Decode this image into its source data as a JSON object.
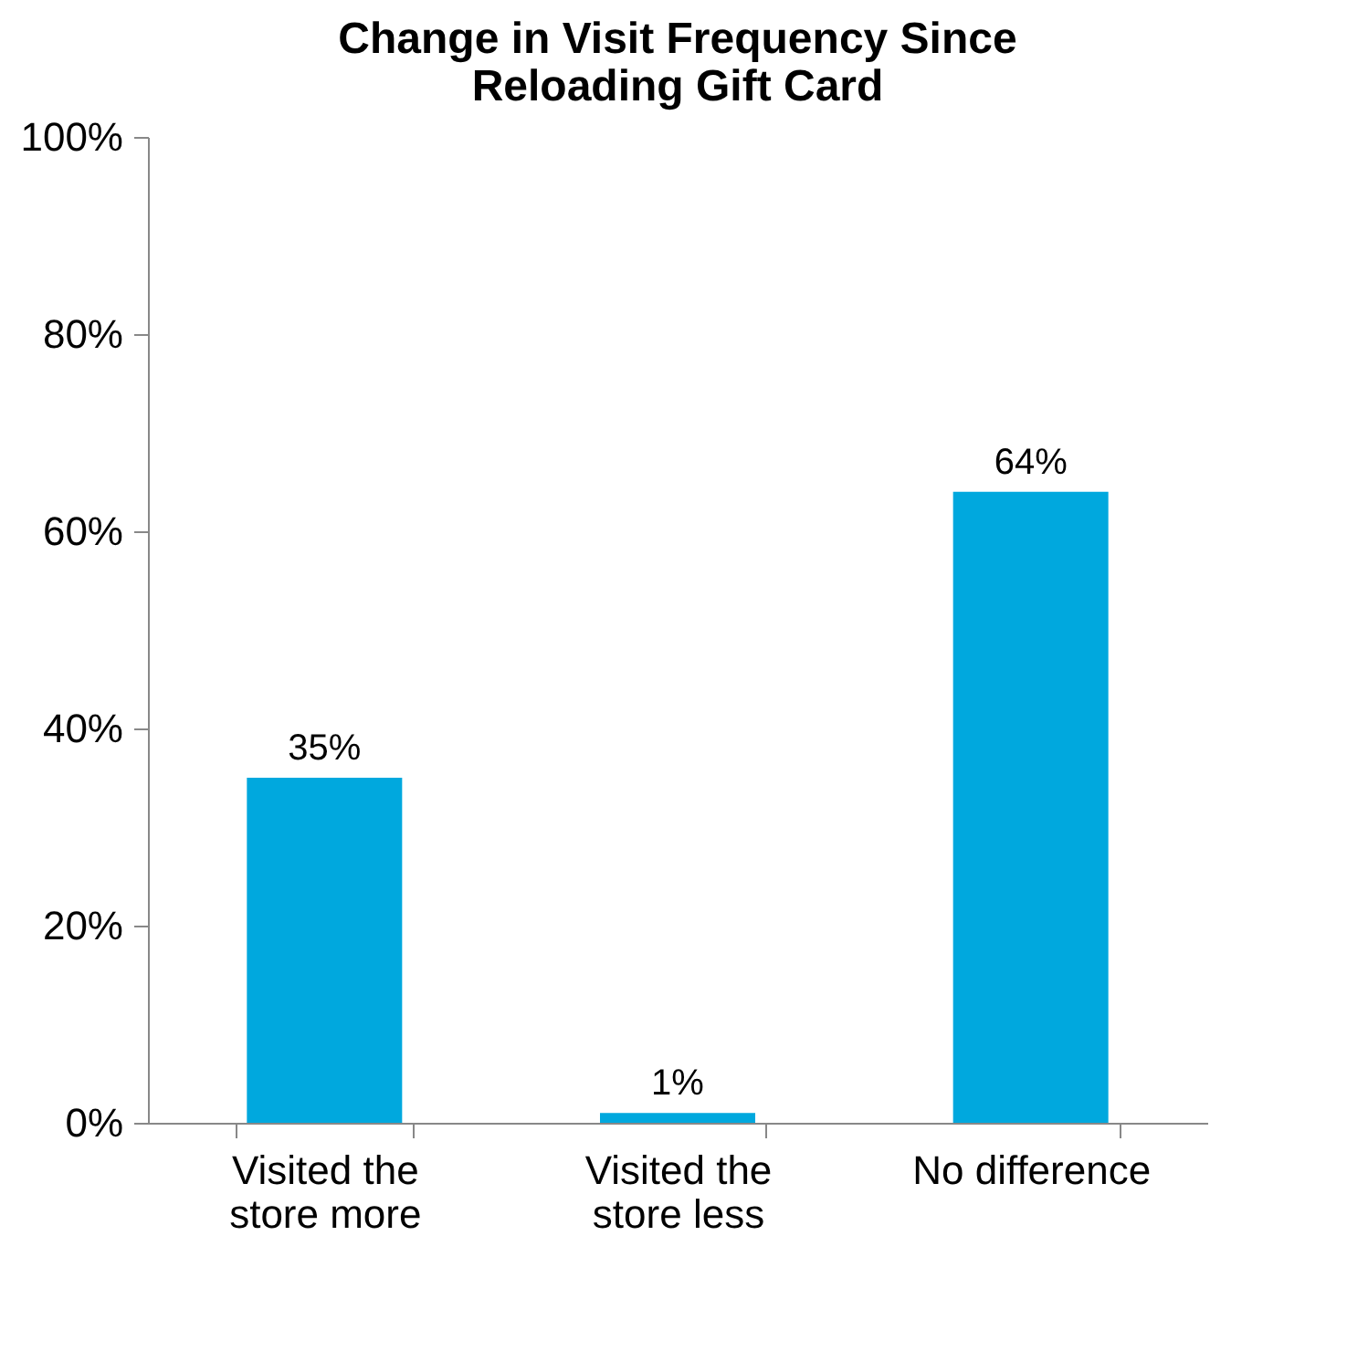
{
  "chart_data": {
    "type": "bar",
    "title": "Change in Visit Frequency Since Reloading Gift Card",
    "categories": [
      "Visited the store more",
      "Visited the store less",
      "No difference"
    ],
    "values": [
      35,
      1,
      64
    ],
    "color": "#00a8de",
    "ylim": [
      0,
      100
    ],
    "yticks": [
      {
        "value": 0,
        "label": "0%"
      },
      {
        "value": 20,
        "label": "20%"
      },
      {
        "value": 40,
        "label": "40%"
      },
      {
        "value": 60,
        "label": "60%"
      },
      {
        "value": 80,
        "label": "80%"
      },
      {
        "value": 100,
        "label": "100%"
      }
    ],
    "value_labels": [
      "35%",
      "1%",
      "64%"
    ],
    "grid": false
  }
}
